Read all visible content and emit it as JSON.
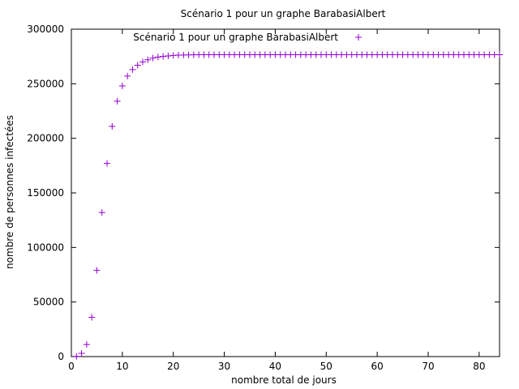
{
  "chart_data": {
    "type": "scatter",
    "title": "Scénario 1 pour un graphe BarabasiAlbert",
    "xlabel": "nombre total de jours",
    "ylabel": "nombre de personnes infectées",
    "xlim": [
      0,
      84
    ],
    "ylim": [
      0,
      300000
    ],
    "xticks": [
      0,
      10,
      20,
      30,
      40,
      50,
      60,
      70,
      80
    ],
    "yticks": [
      0,
      50000,
      100000,
      150000,
      200000,
      250000,
      300000
    ],
    "grid": false,
    "legend_position": "top-right",
    "marker_color": "#9400d3",
    "series": [
      {
        "name": "Scénario 1 pour un graphe BarabasiAlbert",
        "marker": "plus",
        "x": [
          1,
          2,
          3,
          4,
          5,
          6,
          7,
          8,
          9,
          10,
          11,
          12,
          13,
          14,
          15,
          16,
          17,
          18,
          19,
          20,
          21,
          22,
          23,
          24,
          25,
          26,
          27,
          28,
          29,
          30,
          31,
          32,
          33,
          34,
          35,
          36,
          37,
          38,
          39,
          40,
          41,
          42,
          43,
          44,
          45,
          46,
          47,
          48,
          49,
          50,
          51,
          52,
          53,
          54,
          55,
          56,
          57,
          58,
          59,
          60,
          61,
          62,
          63,
          64,
          65,
          66,
          67,
          68,
          69,
          70,
          71,
          72,
          73,
          74,
          75,
          76,
          77,
          78,
          79,
          80,
          81,
          82,
          83,
          84
        ],
        "y": [
          200,
          3000,
          11000,
          36000,
          79000,
          132000,
          177000,
          211000,
          234000,
          248000,
          257000,
          263000,
          267000,
          270000,
          272000,
          273500,
          274500,
          275000,
          275500,
          276000,
          276200,
          276300,
          276400,
          276500,
          276600,
          276600,
          276600,
          276600,
          276600,
          276600,
          276600,
          276600,
          276600,
          276600,
          276600,
          276600,
          276600,
          276600,
          276600,
          276600,
          276600,
          276600,
          276600,
          276600,
          276600,
          276600,
          276600,
          276600,
          276600,
          276600,
          276600,
          276600,
          276600,
          276600,
          276600,
          276600,
          276600,
          276600,
          276600,
          276600,
          276600,
          276600,
          276600,
          276600,
          276600,
          276600,
          276600,
          276600,
          276600,
          276600,
          276600,
          276600,
          276600,
          276600,
          276600,
          276600,
          276600,
          276600,
          276600,
          276600,
          276600,
          276600,
          276600,
          276600
        ]
      }
    ]
  }
}
